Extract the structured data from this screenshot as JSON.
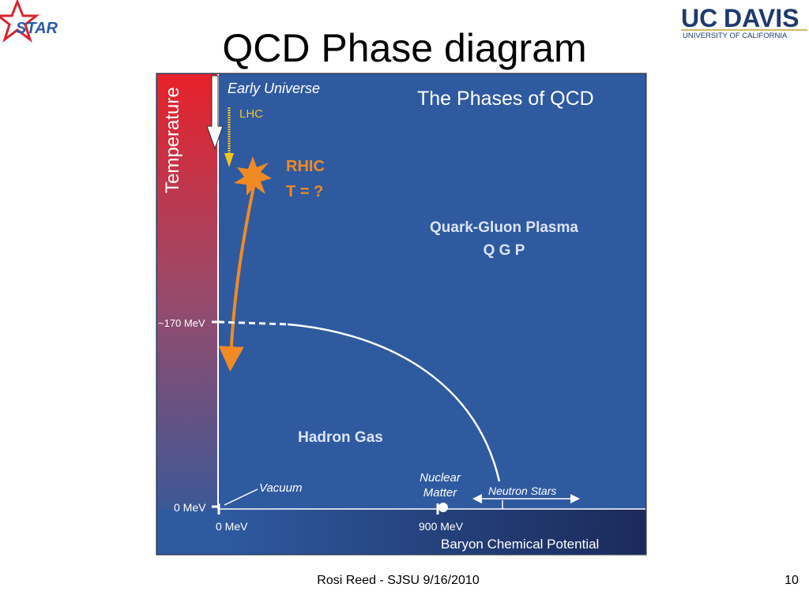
{
  "header": {
    "title": "QCD Phase diagram",
    "logo_left": "STAR",
    "logo_right": {
      "part_a": "UC",
      "part_b": "DAVIS",
      "subtitle": "UNIVERSITY OF CALIFORNIA"
    }
  },
  "diagram": {
    "title": "The Phases of QCD",
    "y_axis_label": "Temperature",
    "x_axis_label": "Baryon Chemical Potential",
    "labels": {
      "early_universe": "Early Universe",
      "lhc": "LHC",
      "rhic": "RHIC",
      "rhic_t": "T = ?",
      "qgp_name": "Quark-Gluon Plasma",
      "qgp_abbr": "Q G P",
      "hadron_gas": "Hadron Gas",
      "vacuum": "Vacuum",
      "nuclear": "Nuclear",
      "matter": "Matter",
      "neutron_stars": "Neutron Stars",
      "t_170": "~170 MeV",
      "t_0": "0 MeV",
      "mu_0": "0 MeV",
      "mu_900": "900 MeV"
    }
  },
  "footer": {
    "text": "Rosi Reed - SJSU 9/16/2010",
    "page": "10"
  }
}
